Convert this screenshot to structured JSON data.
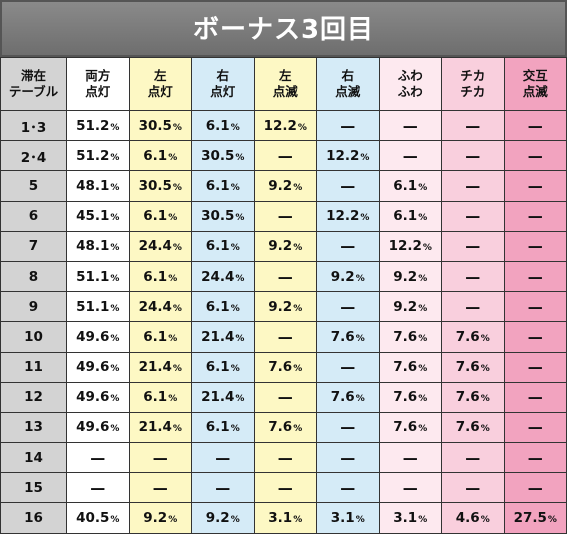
{
  "title": "ボーナス3回目",
  "headers": [
    [
      "滞在",
      "テーブル"
    ],
    [
      "両方",
      "点灯"
    ],
    [
      "左",
      "点灯"
    ],
    [
      "右",
      "点灯"
    ],
    [
      "左",
      "点滅"
    ],
    [
      "右",
      "点滅"
    ],
    [
      "ふわ",
      "ふわ"
    ],
    [
      "チカ",
      "チカ"
    ],
    [
      "交互",
      "点滅"
    ]
  ],
  "rows": [
    {
      "table": "1･3",
      "cells": [
        "51.2",
        "30.5",
        "6.1",
        "12.2",
        "—",
        "—",
        "—",
        "—"
      ]
    },
    {
      "table": "2･4",
      "cells": [
        "51.2",
        "6.1",
        "30.5",
        "—",
        "12.2",
        "—",
        "—",
        "—"
      ]
    },
    {
      "table": "5",
      "cells": [
        "48.1",
        "30.5",
        "6.1",
        "9.2",
        "—",
        "6.1",
        "—",
        "—"
      ]
    },
    {
      "table": "6",
      "cells": [
        "45.1",
        "6.1",
        "30.5",
        "—",
        "12.2",
        "6.1",
        "—",
        "—"
      ]
    },
    {
      "table": "7",
      "cells": [
        "48.1",
        "24.4",
        "6.1",
        "9.2",
        "—",
        "12.2",
        "—",
        "—"
      ]
    },
    {
      "table": "8",
      "cells": [
        "51.1",
        "6.1",
        "24.4",
        "—",
        "9.2",
        "9.2",
        "—",
        "—"
      ]
    },
    {
      "table": "9",
      "cells": [
        "51.1",
        "24.4",
        "6.1",
        "9.2",
        "—",
        "9.2",
        "—",
        "—"
      ]
    },
    {
      "table": "10",
      "cells": [
        "49.6",
        "6.1",
        "21.4",
        "—",
        "7.6",
        "7.6",
        "7.6",
        "—"
      ]
    },
    {
      "table": "11",
      "cells": [
        "49.6",
        "21.4",
        "6.1",
        "7.6",
        "—",
        "7.6",
        "7.6",
        "—"
      ]
    },
    {
      "table": "12",
      "cells": [
        "49.6",
        "6.1",
        "21.4",
        "—",
        "7.6",
        "7.6",
        "7.6",
        "—"
      ]
    },
    {
      "table": "13",
      "cells": [
        "49.6",
        "21.4",
        "6.1",
        "7.6",
        "—",
        "7.6",
        "7.6",
        "—"
      ]
    },
    {
      "table": "14",
      "cells": [
        "—",
        "—",
        "—",
        "—",
        "—",
        "—",
        "—",
        "—"
      ]
    },
    {
      "table": "15",
      "cells": [
        "—",
        "—",
        "—",
        "—",
        "—",
        "—",
        "—",
        "—"
      ]
    },
    {
      "table": "16",
      "cells": [
        "40.5",
        "9.2",
        "9.2",
        "3.1",
        "3.1",
        "3.1",
        "4.6",
        "27.5"
      ]
    }
  ],
  "unit": "%",
  "colors": {
    "header_bar": "#7b7b7b",
    "col_table": "#d3d3d3",
    "col_both": "#ffffff",
    "col_left": "#fdf8c4",
    "col_right": "#d5ebf7",
    "col_fuwa": "#fde9ef",
    "col_chika": "#f9cfdd",
    "col_alt": "#f2a3bf"
  }
}
